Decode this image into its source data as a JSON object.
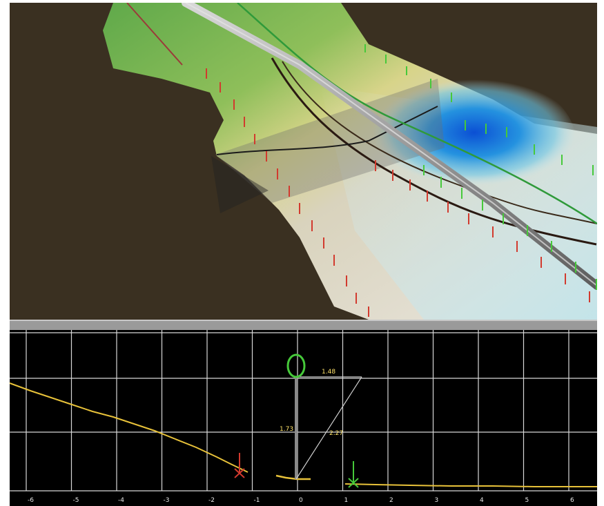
{
  "colors": {
    "background_3d": "#3a3021",
    "profile_background": "#000000",
    "grid": "#d8d8d8",
    "seabed_profile": "#e8c23a",
    "red_marker": "#d23a2e",
    "green_marker": "#46c93a",
    "pipe": "#a8a8a8",
    "measurement_text": "#ffe36a"
  },
  "icons": {
    "pipe_cross_section": "green-circle-icon",
    "left_marker": "red-x-marker-icon",
    "right_marker": "green-x-marker-icon"
  },
  "profile": {
    "x_tick_labels": [
      "-6",
      "-5",
      "-4",
      "-3",
      "-2",
      "-1",
      "0",
      "1",
      "2",
      "3",
      "4",
      "5",
      "6"
    ],
    "measurements": {
      "horizontal": "1.48",
      "vertical": "1.73",
      "diagonal": "2.27"
    }
  }
}
